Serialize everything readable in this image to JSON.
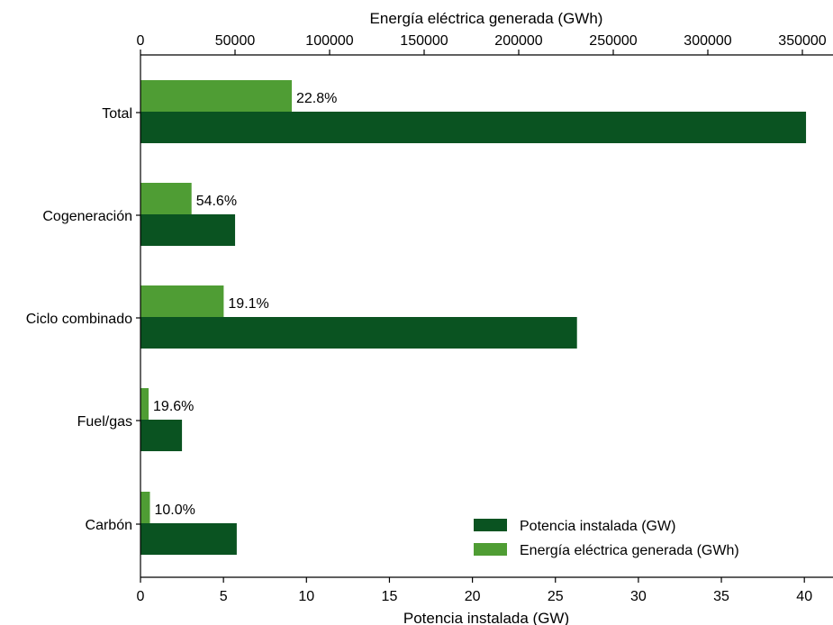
{
  "chart_data": {
    "type": "bar",
    "orientation": "horizontal",
    "categories": [
      "Total",
      "Cogeneración",
      "Ciclo combinado",
      "Fuel/gas",
      "Carbón"
    ],
    "series": [
      {
        "name": "Potencia instalada (GW)",
        "axis": "bottom",
        "color": "#0a5321",
        "values": [
          40.1,
          5.7,
          26.3,
          2.5,
          5.8
        ]
      },
      {
        "name": "Energía eléctrica generada (GWh)",
        "axis": "top",
        "color": "#4f9d34",
        "values": [
          80000,
          27000,
          44000,
          4300,
          5000
        ],
        "labels": [
          "22.8%",
          "54.6%",
          "19.1%",
          "19.6%",
          "10.0%"
        ]
      }
    ],
    "xlabel_bottom": "Potencia instalada (GW)",
    "xlim_bottom": [
      0,
      41.5
    ],
    "xticks_bottom": [
      "0",
      "5",
      "10",
      "15",
      "20",
      "25",
      "30",
      "35",
      "40"
    ],
    "xlabel_top": "Energía eléctrica generada (GWh)",
    "xlim_top": [
      0,
      363000
    ],
    "xticks_top": [
      "0",
      "50000",
      "100000",
      "150000",
      "200000",
      "250000",
      "300000",
      "350000"
    ],
    "legend": {
      "position": "lower-right",
      "entries": [
        "Potencia instalada (GW)",
        "Energía eléctrica generada (GWh)"
      ]
    },
    "grid": false
  }
}
